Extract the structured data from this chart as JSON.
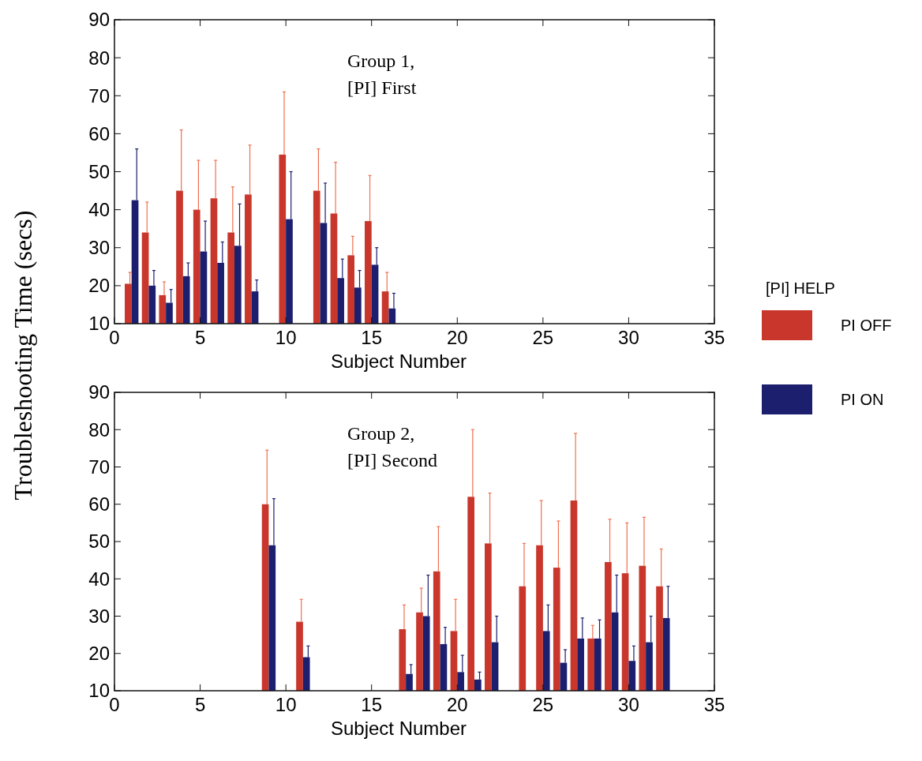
{
  "chart_data": [
    {
      "type": "bar",
      "xlabel": "Subject Number",
      "ylabel": "Troubleshooting Time (secs)",
      "legend_title": "[PI] HELP",
      "legend": "right",
      "annotations": [
        "Group 1,",
        "[PI] First"
      ],
      "xlim": [
        0,
        35
      ],
      "xticks": [
        0,
        5,
        10,
        15,
        20,
        25,
        30,
        35
      ],
      "ylim": [
        10,
        90
      ],
      "yticks": [
        10,
        20,
        30,
        40,
        50,
        60,
        70,
        80,
        90
      ],
      "x": [
        1,
        2,
        3,
        4,
        5,
        6,
        7,
        8,
        10,
        12,
        13,
        14,
        15,
        16
      ],
      "series": [
        {
          "name": "PI OFF",
          "color": "#c9372c",
          "values": [
            20.5,
            34,
            17.5,
            45,
            40,
            43,
            34,
            44,
            54.5,
            45,
            39,
            28,
            37,
            18.5
          ],
          "errors": [
            [
              20.5,
              23.5
            ],
            [
              34,
              42
            ],
            [
              17.5,
              21
            ],
            [
              45,
              61
            ],
            [
              40,
              53
            ],
            [
              43,
              53
            ],
            [
              34,
              46
            ],
            [
              44,
              57
            ],
            [
              54.5,
              71
            ],
            [
              45,
              56
            ],
            [
              39,
              52.5
            ],
            [
              28,
              33
            ],
            [
              37,
              49
            ],
            [
              18.5,
              23.5
            ]
          ]
        },
        {
          "name": "PI ON",
          "color": "#1b1f6e",
          "values": [
            42.5,
            20,
            15.5,
            22.5,
            29,
            26,
            30.5,
            18.5,
            37.5,
            36.5,
            22,
            19.5,
            25.5,
            14
          ],
          "errors": [
            [
              42.5,
              56
            ],
            [
              20,
              24
            ],
            [
              15.5,
              19
            ],
            [
              22.5,
              26
            ],
            [
              29,
              37
            ],
            [
              26,
              31.5
            ],
            [
              30.5,
              41.5
            ],
            [
              18.5,
              21.5
            ],
            [
              37.5,
              50
            ],
            [
              36.5,
              47
            ],
            [
              22,
              27
            ],
            [
              19.5,
              24
            ],
            [
              25.5,
              30
            ],
            [
              14,
              18
            ]
          ]
        }
      ]
    },
    {
      "type": "bar",
      "xlabel": "Subject Number",
      "annotations": [
        "Group 2,",
        "[PI] Second"
      ],
      "xlim": [
        0,
        35
      ],
      "xticks": [
        0,
        5,
        10,
        15,
        20,
        25,
        30,
        35
      ],
      "ylim": [
        10,
        90
      ],
      "yticks": [
        10,
        20,
        30,
        40,
        50,
        60,
        70,
        80,
        90
      ],
      "x": [
        9,
        11,
        17,
        18,
        19,
        20,
        21,
        22,
        24,
        25,
        26,
        27,
        28,
        29,
        30,
        31,
        32
      ],
      "series": [
        {
          "color": "#c9372c",
          "values": [
            60,
            28.5,
            26.5,
            31,
            42,
            26,
            62,
            49.5,
            38,
            49,
            43,
            61,
            24,
            44.5,
            41.5,
            43.5,
            38
          ],
          "errors": [
            [
              60,
              74.5
            ],
            [
              28.5,
              34.5
            ],
            [
              26.5,
              33
            ],
            [
              31,
              37.5
            ],
            [
              42,
              54
            ],
            [
              26,
              34.5
            ],
            [
              62,
              80
            ],
            [
              49.5,
              63
            ],
            [
              38,
              49.5
            ],
            [
              49,
              61
            ],
            [
              43,
              55.5
            ],
            [
              61,
              79
            ],
            [
              24,
              27.5
            ],
            [
              44.5,
              56
            ],
            [
              41.5,
              55
            ],
            [
              43.5,
              56.5
            ],
            [
              38,
              48
            ]
          ]
        },
        {
          "color": "#1b1f6e",
          "values": [
            49,
            19,
            14.5,
            30,
            22.5,
            15,
            13,
            23,
            null,
            26,
            17.5,
            24,
            24,
            31,
            18,
            23,
            29.5
          ],
          "errors": [
            [
              49,
              61.5
            ],
            [
              19,
              22
            ],
            [
              14.5,
              17
            ],
            [
              30,
              41
            ],
            [
              22.5,
              27
            ],
            [
              15,
              19.5
            ],
            [
              13,
              15
            ],
            [
              23,
              30
            ],
            null,
            [
              26,
              33
            ],
            [
              17.5,
              21
            ],
            [
              24,
              29.5
            ],
            [
              24,
              29
            ],
            [
              31,
              41
            ],
            [
              18,
              22
            ],
            [
              23,
              30
            ],
            [
              29.5,
              38
            ]
          ]
        }
      ]
    }
  ]
}
